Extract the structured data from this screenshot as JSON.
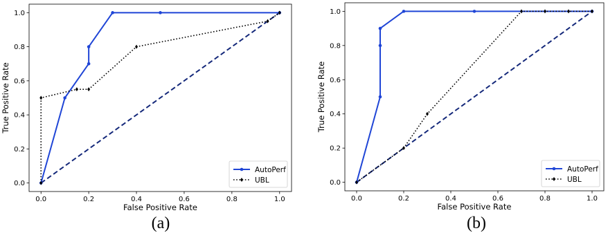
{
  "chart_data": [
    {
      "type": "line",
      "caption": "(a)",
      "xlabel": "False Positive Rate",
      "ylabel": "True Positive Rate",
      "xlim": [
        -0.05,
        1.05
      ],
      "ylim": [
        -0.05,
        1.05
      ],
      "xticks": [
        "0.0",
        "0.2",
        "0.4",
        "0.6",
        "0.8",
        "1.0"
      ],
      "yticks": [
        "0.0",
        "0.2",
        "0.4",
        "0.6",
        "0.8",
        "1.0"
      ],
      "grid": false,
      "legend_position": "bottom-right",
      "diagonal": true,
      "series": [
        {
          "name": "AutoPerf",
          "color": "#1f45d6",
          "style": "solid",
          "marker": "circle",
          "x": [
            0.0,
            0.1,
            0.2,
            0.2,
            0.3,
            0.5,
            1.0
          ],
          "y": [
            0.0,
            0.5,
            0.7,
            0.8,
            1.0,
            1.0,
            1.0
          ]
        },
        {
          "name": "UBL",
          "color": "#000000",
          "style": "dotted",
          "marker": "diamond",
          "x": [
            0.0,
            0.0,
            0.15,
            0.2,
            0.4,
            0.95,
            1.0
          ],
          "y": [
            0.0,
            0.5,
            0.55,
            0.55,
            0.8,
            0.95,
            1.0
          ]
        }
      ]
    },
    {
      "type": "line",
      "caption": "(b)",
      "xlabel": "False Positive Rate",
      "ylabel": "True Positive Rate",
      "xlim": [
        -0.05,
        1.05
      ],
      "ylim": [
        -0.05,
        1.05
      ],
      "xticks": [
        "0.0",
        "0.2",
        "0.4",
        "0.6",
        "0.8",
        "1.0"
      ],
      "yticks": [
        "0.0",
        "0.2",
        "0.4",
        "0.6",
        "0.8",
        "1.0"
      ],
      "grid": false,
      "legend_position": "bottom-right",
      "diagonal": true,
      "series": [
        {
          "name": "AutoPerf",
          "color": "#1f45d6",
          "style": "solid",
          "marker": "circle",
          "x": [
            0.0,
            0.1,
            0.1,
            0.1,
            0.2,
            0.5,
            1.0
          ],
          "y": [
            0.0,
            0.5,
            0.8,
            0.9,
            1.0,
            1.0,
            1.0
          ]
        },
        {
          "name": "UBL",
          "color": "#000000",
          "style": "dotted",
          "marker": "diamond",
          "x": [
            0.0,
            0.2,
            0.3,
            0.7,
            0.8,
            0.9,
            1.0
          ],
          "y": [
            0.0,
            0.2,
            0.4,
            1.0,
            1.0,
            1.0,
            1.0
          ]
        }
      ]
    }
  ],
  "diagonal_color": "#14287a"
}
